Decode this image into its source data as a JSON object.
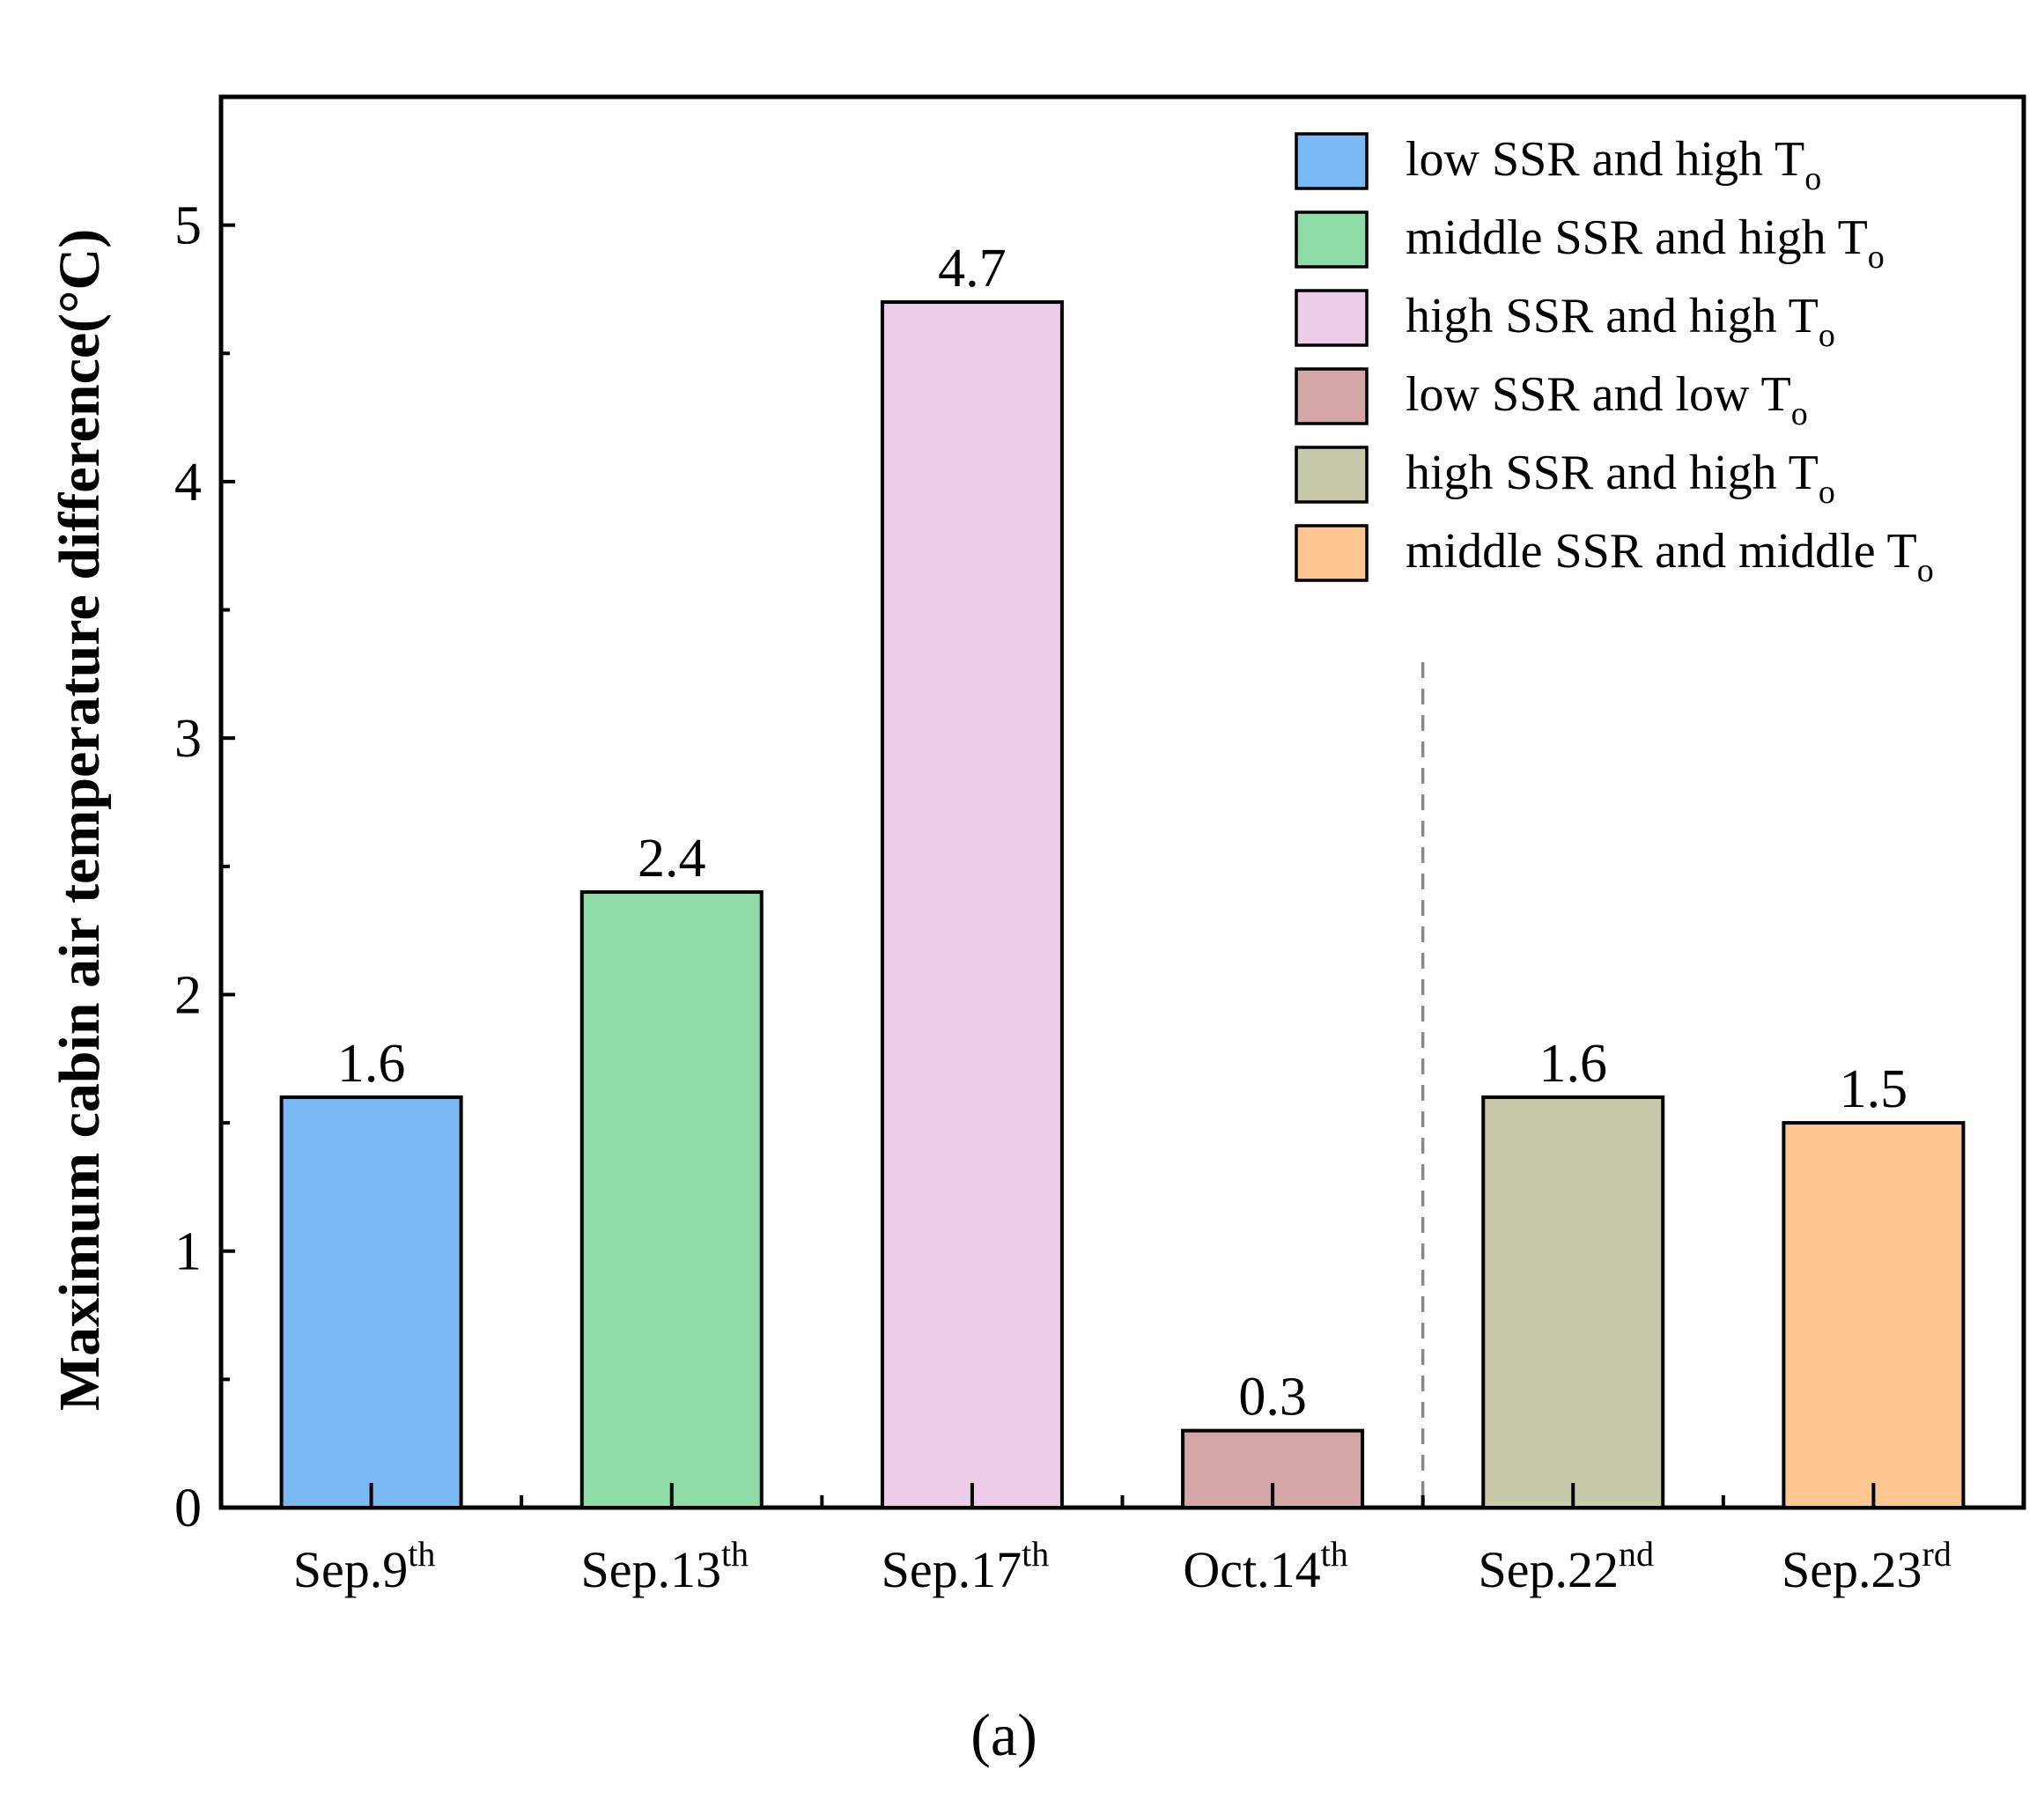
{
  "chart_data": {
    "type": "bar",
    "ylabel": "Maximum cabin air temperature difference(°C)",
    "xlabel": "",
    "ylim": [
      0,
      5.5
    ],
    "y_major_ticks": [
      0,
      1,
      2,
      3,
      4,
      5
    ],
    "y_minor_ticks": [
      0.5,
      1.5,
      2.5,
      3.5,
      4.5
    ],
    "categories": [
      {
        "base": "Sep.9",
        "sup": "th"
      },
      {
        "base": "Sep.13",
        "sup": "th"
      },
      {
        "base": "Sep.17",
        "sup": "th"
      },
      {
        "base": "Oct.14",
        "sup": "th"
      },
      {
        "base": "Sep.22",
        "sup": "nd"
      },
      {
        "base": "Sep.23",
        "sup": "rd"
      }
    ],
    "values": [
      1.6,
      2.4,
      4.7,
      0.3,
      1.6,
      1.5
    ],
    "value_labels": [
      "1.6",
      "2.4",
      "4.7",
      "0.3",
      "1.6",
      "1.5"
    ],
    "colors": [
      "#7ab8f3",
      "#8fdba6",
      "#ecccE6",
      "#d5a6a6",
      "#c7c9a9",
      "#fec792"
    ],
    "legend": [
      {
        "text": "low SSR and high T",
        "sub": "o",
        "color": "#7ab8f3"
      },
      {
        "text": "middle SSR and high T",
        "sub": "o",
        "color": "#8fdba6"
      },
      {
        "text": "high SSR and high T",
        "sub": "o",
        "color": "#ecccE6"
      },
      {
        "text": "low SSR and low T",
        "sub": "o",
        "color": "#d5a6a6"
      },
      {
        "text": "high SSR and high T",
        "sub": "o",
        "color": "#c7c9a9"
      },
      {
        "text": "middle SSR and middle T",
        "sub": "o",
        "color": "#fec792"
      }
    ],
    "legend_position": "top-right",
    "separator_after_category_index": 3,
    "caption": "(a)"
  }
}
